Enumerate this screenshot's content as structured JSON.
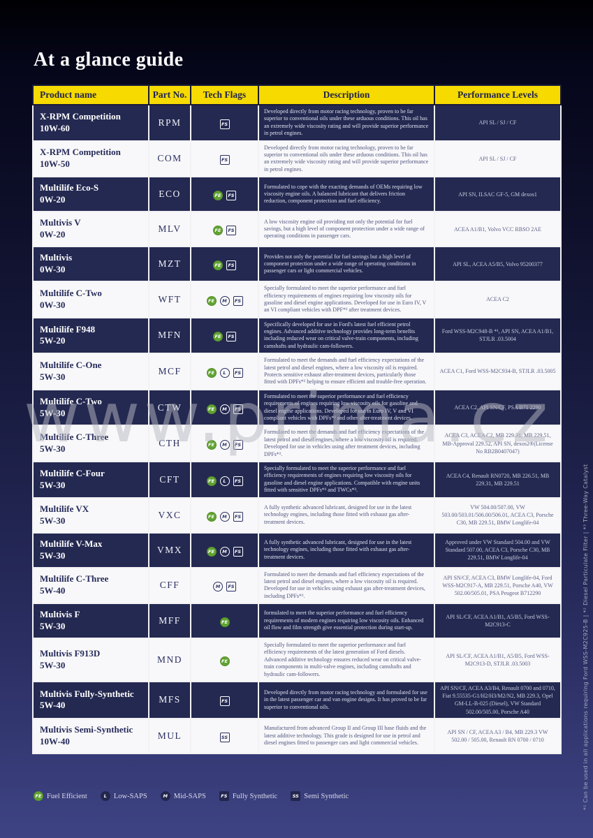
{
  "page": {
    "title": "At a glance guide"
  },
  "table": {
    "columns": [
      "Product name",
      "Part No.",
      "Tech Flags",
      "Description",
      "Performance Levels"
    ],
    "rows": [
      {
        "name": "X-RPM Competition",
        "grade": "10W-60",
        "part": "RPM",
        "flags": [
          "FS"
        ],
        "description": "Developed directly from motor racing technology, proven to be far superior to conventional oils under these arduous conditions. This oil has an extremely wide viscosity rating and will provide superior performance in petrol engines.",
        "performance": "API SL / SJ / CF"
      },
      {
        "name": "X-RPM Competition",
        "grade": "10W-50",
        "part": "COM",
        "flags": [
          "FS"
        ],
        "description": "Developed directly from motor racing technology, proven to be far superior to conventional oils under these arduous conditions. This oil has an extremely wide viscosity rating and will provide superior performance in petrol engines.",
        "performance": "API SL / SJ / CF"
      },
      {
        "name": "Multilife Eco-S",
        "grade": "0W-20",
        "part": "ECO",
        "flags": [
          "FE",
          "FS"
        ],
        "description": "Formulated to cope with the exacting demands of OEMs requiring low viscosity engine oils. A balanced lubricant that delivers friction reduction, component protection and fuel efficiency.",
        "performance": "API SN, ILSAC GF-5, GM dexos1"
      },
      {
        "name": "Multivis V",
        "grade": "0W-20",
        "part": "MLV",
        "flags": [
          "FE",
          "FS"
        ],
        "description": "A low viscosity engine oil providing not only the potential for fuel savings, but a high level of component protection under a wide range of operating conditions in passenger cars.",
        "performance": "ACEA A1/B1, Volvo VCC RBSO 2AE"
      },
      {
        "name": "Multivis",
        "grade": "0W-30",
        "part": "MZT",
        "flags": [
          "FE",
          "FS"
        ],
        "description": "Provides not only the potential for fuel savings but a high level of component protection under a wide range of operating conditions in passenger cars or light commercial vehicles.",
        "performance": "API SL, ACEA A5/B5, Volvo 95200377"
      },
      {
        "name": "Multilife C-Two",
        "grade": "0W-30",
        "part": "WFT",
        "flags": [
          "FE",
          "M",
          "FS"
        ],
        "description": "Specially formulated to meet the superior performance and fuel efficiency requirements of engines requiring low viscosity oils for gasoline and diesel engine applications. Developed for use in Euro IV, V an VI compliant vehicles with DPF*² after treatment devices.",
        "performance": "ACEA C2"
      },
      {
        "name": "Multilife F948",
        "grade": "5W-20",
        "part": "MFN",
        "flags": [
          "FE",
          "FS"
        ],
        "description": "Specifically developed for use in Ford's latest fuel efficient petrol engines.  Advanced additive technology provides long-term benefits including reduced wear on critical valve-train components, including camshafts and hydraulic cam-followers.",
        "performance": "Ford WSS-M2C948-B *¹, API SN, ACEA A1/B1, STJLR .03.5004"
      },
      {
        "name": "Multilife C-One",
        "grade": "5W-30",
        "part": "MCF",
        "flags": [
          "FE",
          "L",
          "FS"
        ],
        "description": "Formulated to meet the demands and fuel efficiency expectations of the latest petrol and diesel engines, where a low viscosity oil is required. Protects sensitive exhaust after-treatment devices, particularly those fitted with DPFs*² helping to ensure efficient and trouble-free operation.",
        "performance": "ACEA C1, Ford WSS-M2C934-B, STJLR .03.5005"
      },
      {
        "name": "Multilife C-Two",
        "grade": "5W-30",
        "part": "CTW",
        "flags": [
          "FE",
          "M",
          "FS"
        ],
        "description": "Formulated to meet the superior performance and fuel efficiency requirements of engines requiring low viscosity oils for gasoline and diesel engine applications. Developed for use in Euro IV, V and VI compliant vehicles with DPFs*² and other after-treatment devices.",
        "performance": "ACEA C2, API SN/CF, PSA B71 2290"
      },
      {
        "name": "Multilife C-Three",
        "grade": "5W-30",
        "part": "CTH",
        "flags": [
          "FE",
          "M",
          "FS"
        ],
        "description": "Formulated to meet the demands and fuel efficiency expectations of the latest petrol and diesel engines, where a low viscosity oil is required. Developed for use in vehicles using after treatment devices, including DPFs*².",
        "performance": "ACEA C3, ACEA C2, MB 229.31, MB 229.51, MB-Approval 229.52, API SN, dexos2®(License No RB2B0407047)"
      },
      {
        "name": "Multilife C-Four",
        "grade": "5W-30",
        "part": "CFT",
        "flags": [
          "FE",
          "L",
          "FS"
        ],
        "description": "Specially formulated to meet the superior performance and fuel efficiency requirements of engines requiring low viscosity oils for gasoline and diesel engine applications. Compatible with engine units fitted with sensitive DPFs*² and TWCs*³.",
        "performance": "ACEA C4, Renault RN0720, MB 226.51, MB 229.31, MB 229.51"
      },
      {
        "name": "Multilife VX",
        "grade": "5W-30",
        "part": "VXC",
        "flags": [
          "FE",
          "M",
          "FS"
        ],
        "description": "A fully synthetic advanced lubricant, designed for use in the latest technology engines, including those fitted with exhaust gas after-treatment devices.",
        "performance": "VW 504.00/507.00, VW 503.00/503.01/506.00/506.01, ACEA C3, Porsche C30, MB 229.51, BMW Longlife-04"
      },
      {
        "name": "Multilife V-Max",
        "grade": "5W-30",
        "part": "VMX",
        "flags": [
          "FE",
          "M",
          "FS"
        ],
        "description": "A fully synthetic advanced lubricant, designed for use in the latest technology engines, including those fitted with exhaust gas after-treatment devices.",
        "performance": "Approved under VW Standard 504.00 and VW Standard 507.00, ACEA C3, Porsche C30, MB 229.51, BMW Longlife-04"
      },
      {
        "name": "Multilife C-Three",
        "grade": "5W-40",
        "part": "CFF",
        "flags": [
          "M",
          "FS"
        ],
        "description": "Formulated to meet the demands and fuel efficiency expectations of the latest petrol and diesel engines, where a low viscosity oil is required.  Developed for use in vehicles using exhaust gas after-treatment devices, including DPFs*².",
        "performance": "API SN/CF, ACEA C3, BMW Longlife-04, Ford WSS-M2C917-A, MB 229.51, Porsche A40, VW 502.00/505.01, PSA Peugeot B712290"
      },
      {
        "name": "Multivis F",
        "grade": "5W-30",
        "part": "MFF",
        "flags": [
          "FE"
        ],
        "description": "formulated to meet the superior performance and fuel efficiency requirements of modern engines requiring low viscosity oils. Enhanced oil flow and film strength give essential protection during start-up.",
        "performance": "API SL/CF, ACEA A1/B1, A5/B5, Ford WSS-M2C913-C"
      },
      {
        "name": "Multivis F913D",
        "grade": "5W-30",
        "part": "MND",
        "flags": [
          "FE"
        ],
        "description": "Specially formulated to meet the superior performance and fuel efficiency requirements of the latest generation of Ford diesels. Advanced additive technology ensures reduced wear on critical valve-train components in multi-valve engines, including camshafts and hydraulic cam-followers.",
        "performance": "API SL/CF, ACEA A1/B1, A5/B5, Ford WSS-M2C913-D, STJLR .03.5003"
      },
      {
        "name": "Multivis Fully-Synthetic",
        "grade": "5W-40",
        "part": "MFS",
        "flags": [
          "FS"
        ],
        "description": "Developed directly from motor racing technology and formulated for use in the latest passenger car and van engine designs. It has proved to be far superior to conventional oils.",
        "performance": "API SN/CF, ACEA A3/B4, Renault 0700 and 0710, Fiat 9.55535-G1/H2/H3/M2/N2, MB 229.3, Opel GM-LL-B-025 (Diesel), VW Standard 502.00/505.00, Porsche A40"
      },
      {
        "name": "Multivis Semi-Synthetic",
        "grade": "10W-40",
        "part": "MUL",
        "flags": [
          "SS"
        ],
        "description": "Manufactured from advanced Group II and Group III base fluids and the latest additive technology. This grade is designed for use in petrol and diesel engines fitted to passenger cars and light commercial vehicles.",
        "performance": "API SN / CF, ACEA A3 / B4, MB 229.3 VW 502.00 / 505.00, Renault RN 0700 / 0710"
      }
    ]
  },
  "legend": {
    "items": [
      {
        "code": "FE",
        "label": "Fuel Efficient"
      },
      {
        "code": "L",
        "label": "Low-SAPS"
      },
      {
        "code": "M",
        "label": "Mid-SAPS"
      },
      {
        "code": "FS",
        "label": "Fully Synthetic"
      },
      {
        "code": "SS",
        "label": "Semi Synthetic"
      }
    ]
  },
  "footnote": "*¹ Can be used in all applications requiring Ford WSS-M2C925-B   |   *² Diesel Particulate Filter   |   *³ Three-Way Catalyst",
  "watermark": "www.prima.cz",
  "colors": {
    "header_bg": "#f6da00",
    "header_text": "#20244c",
    "row_dark": "#242951",
    "row_light": "#f8f8fa",
    "accent_green": "#61a233",
    "page_bottom": "#3e4384"
  }
}
